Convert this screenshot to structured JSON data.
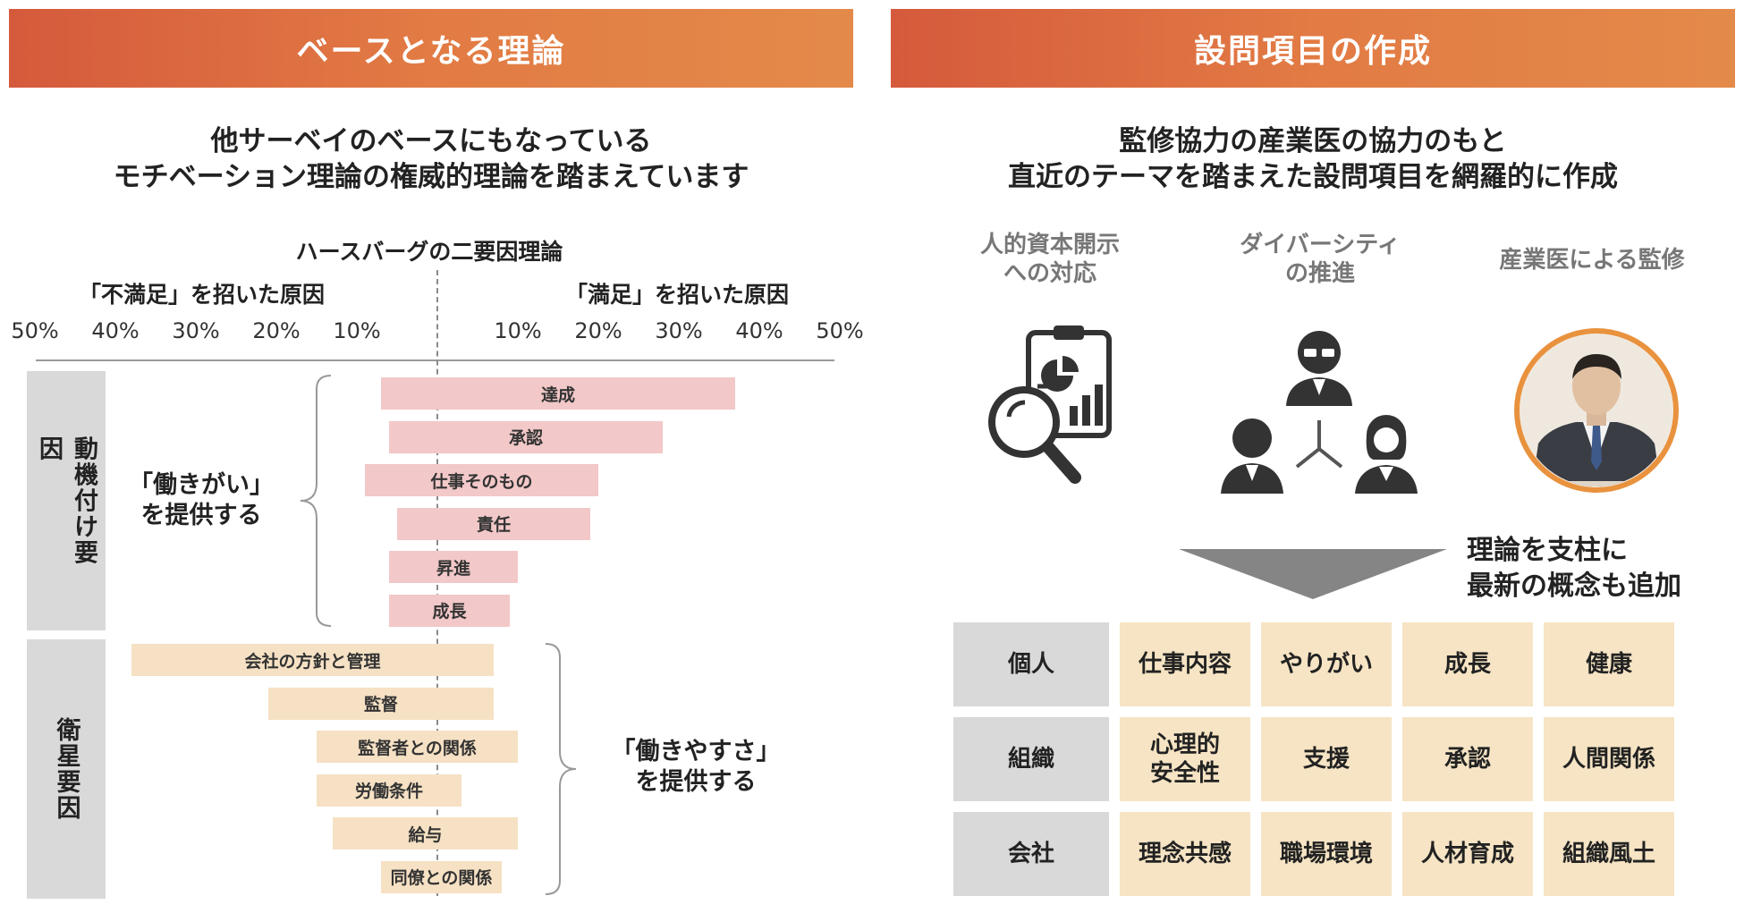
{
  "left": {
    "banner": "ベースとなる理論",
    "subtitle_line1": "他サーベイのベースにもなっている",
    "subtitle_line2": "モチベーション理論の権威的理論を踏まえています",
    "chart_title": "ハースバーグの二要因理論",
    "left_axis_title": "「不満足」を招いた原因",
    "right_axis_title": "「満足」を招いた原因",
    "motivators_label": "動機付け要因",
    "hygiene_label": "衛星要因",
    "motivators_caption_line1": "「働きがい」",
    "motivators_caption_line2": "を提供する",
    "hygiene_caption_line1": "「働きやすさ」",
    "hygiene_caption_line2": "を提供する"
  },
  "chart_data": {
    "type": "bar",
    "title": "ハースバーグの二要因理論",
    "orientation": "horizontal",
    "x_ticks_left": [
      "50%",
      "40%",
      "30%",
      "20%",
      "10%"
    ],
    "x_ticks_right": [
      "10%",
      "20%",
      "30%",
      "40%",
      "50%"
    ],
    "xlim_percent": [
      -50,
      50
    ],
    "series": [
      {
        "name": "動機付け要因",
        "color": "#f2c8c8",
        "categories": [
          "達成",
          "承認",
          "仕事そのもの",
          "責任",
          "昇進",
          "成長"
        ],
        "ranges": [
          [
            -7,
            37
          ],
          [
            -6,
            28
          ],
          [
            -9,
            20
          ],
          [
            -5,
            19
          ],
          [
            -6,
            10
          ],
          [
            -6,
            9
          ]
        ]
      },
      {
        "name": "衛星要因",
        "color": "#f6e1c4",
        "categories": [
          "会社の方針と管理",
          "監督",
          "監督者との関係",
          "労働条件",
          "給与",
          "同僚との関係"
        ],
        "ranges": [
          [
            -38,
            7
          ],
          [
            -21,
            7
          ],
          [
            -15,
            10
          ],
          [
            -15,
            3
          ],
          [
            -13,
            10
          ],
          [
            -7,
            8
          ]
        ]
      }
    ]
  },
  "right": {
    "banner": "設問項目の作成",
    "subtitle_line1": "監修協力の産業医の協力のもと",
    "subtitle_line2": "直近のテーマを踏まえた設問項目を網羅的に作成",
    "icon1_line1": "人的資本開示",
    "icon1_line2": "への対応",
    "icon2_line1": "ダイバーシティ",
    "icon2_line2": "の推進",
    "icon3": "産業医による監修",
    "note_line1": "理論を支柱に",
    "note_line2": "最新の概念も追加",
    "grid": {
      "rows": [
        {
          "head": "個人",
          "items": [
            "仕事内容",
            "やりがい",
            "成長",
            "健康"
          ]
        },
        {
          "head": "組織",
          "items": [
            "心理的\n安全性",
            "支援",
            "承認",
            "人間関係"
          ]
        },
        {
          "head": "会社",
          "items": [
            "理念共感",
            "職場環境",
            "人材育成",
            "組織風土"
          ]
        }
      ]
    },
    "icon_names": [
      "clipboard-magnifier-icon",
      "people-network-icon",
      "doctor-portrait-icon"
    ]
  },
  "colors": {
    "banner_start": "#d55a3c",
    "banner_end": "#e38a4a",
    "motivator_bar": "#f2c8c8",
    "hygiene_bar": "#f6e1c4",
    "grid_head": "#d9d9d9",
    "grid_item": "#f6e4c4",
    "portrait_ring": "#e9923e"
  }
}
